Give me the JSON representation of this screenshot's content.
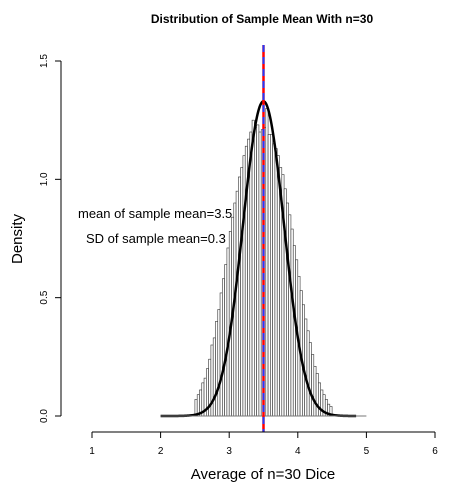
{
  "chart_data": {
    "type": "bar",
    "title": "Distribution of Sample Mean With n=30",
    "xlabel": "Average of n=30 Dice",
    "ylabel": "Density",
    "xlim": [
      0.75,
      6.25
    ],
    "ylim": [
      0,
      1.5
    ],
    "x_ticks": [
      1,
      2,
      3,
      4,
      5,
      6
    ],
    "y_ticks": [
      0.0,
      0.5,
      1.0,
      1.5
    ],
    "x_tick_labels": [
      "1",
      "2",
      "3",
      "4",
      "5",
      "6"
    ],
    "y_tick_labels": [
      "0.0",
      "0.5",
      "1.0",
      "1.5"
    ],
    "histogram": {
      "bin_width": 0.0333,
      "x_start": 2.0,
      "x_end": 5.0,
      "bin_centers": [
        2.5167,
        2.55,
        2.5833,
        2.6167,
        2.65,
        2.6833,
        2.7167,
        2.75,
        2.7833,
        2.8167,
        2.85,
        2.8833,
        2.9167,
        2.95,
        2.9833,
        3.0167,
        3.05,
        3.0833,
        3.1167,
        3.15,
        3.1833,
        3.2167,
        3.25,
        3.2833,
        3.3167,
        3.35,
        3.3833,
        3.4167,
        3.45,
        3.4833,
        3.5167,
        3.55,
        3.5833,
        3.6167,
        3.65,
        3.6833,
        3.7167,
        3.75,
        3.7833,
        3.8167,
        3.85,
        3.8833,
        3.9167,
        3.95,
        3.9833,
        4.0167,
        4.05,
        4.0833,
        4.1167,
        4.15,
        4.1833,
        4.2167,
        4.25,
        4.2833,
        4.3167,
        4.35,
        4.3833,
        4.4167,
        4.45,
        4.4833
      ],
      "densities": [
        0.07,
        0.09,
        0.11,
        0.14,
        0.16,
        0.2,
        0.24,
        0.3,
        0.33,
        0.4,
        0.45,
        0.52,
        0.58,
        0.64,
        0.71,
        0.78,
        0.84,
        0.9,
        0.95,
        1.01,
        1.05,
        1.1,
        1.14,
        1.17,
        1.2,
        1.25,
        1.22,
        1.23,
        1.2,
        1.21,
        1.22,
        1.3,
        1.19,
        1.19,
        1.15,
        1.13,
        1.1,
        1.05,
        1.02,
        0.96,
        0.9,
        0.85,
        0.79,
        0.72,
        0.66,
        0.59,
        0.53,
        0.47,
        0.41,
        0.36,
        0.31,
        0.26,
        0.21,
        0.18,
        0.14,
        0.11,
        0.09,
        0.07,
        0.05,
        0.04
      ]
    },
    "density_curve": {
      "mean": 3.5,
      "sd": 0.3,
      "x_range": [
        2.0,
        4.85
      ]
    },
    "vlines": [
      {
        "x": 3.5,
        "color": "#ff0000",
        "style": "solid"
      },
      {
        "x": 3.5,
        "color": "#1f3bff",
        "style": "dashed"
      }
    ],
    "annotations": [
      "mean of sample mean=3.5",
      "SD of sample mean=0.3"
    ]
  }
}
